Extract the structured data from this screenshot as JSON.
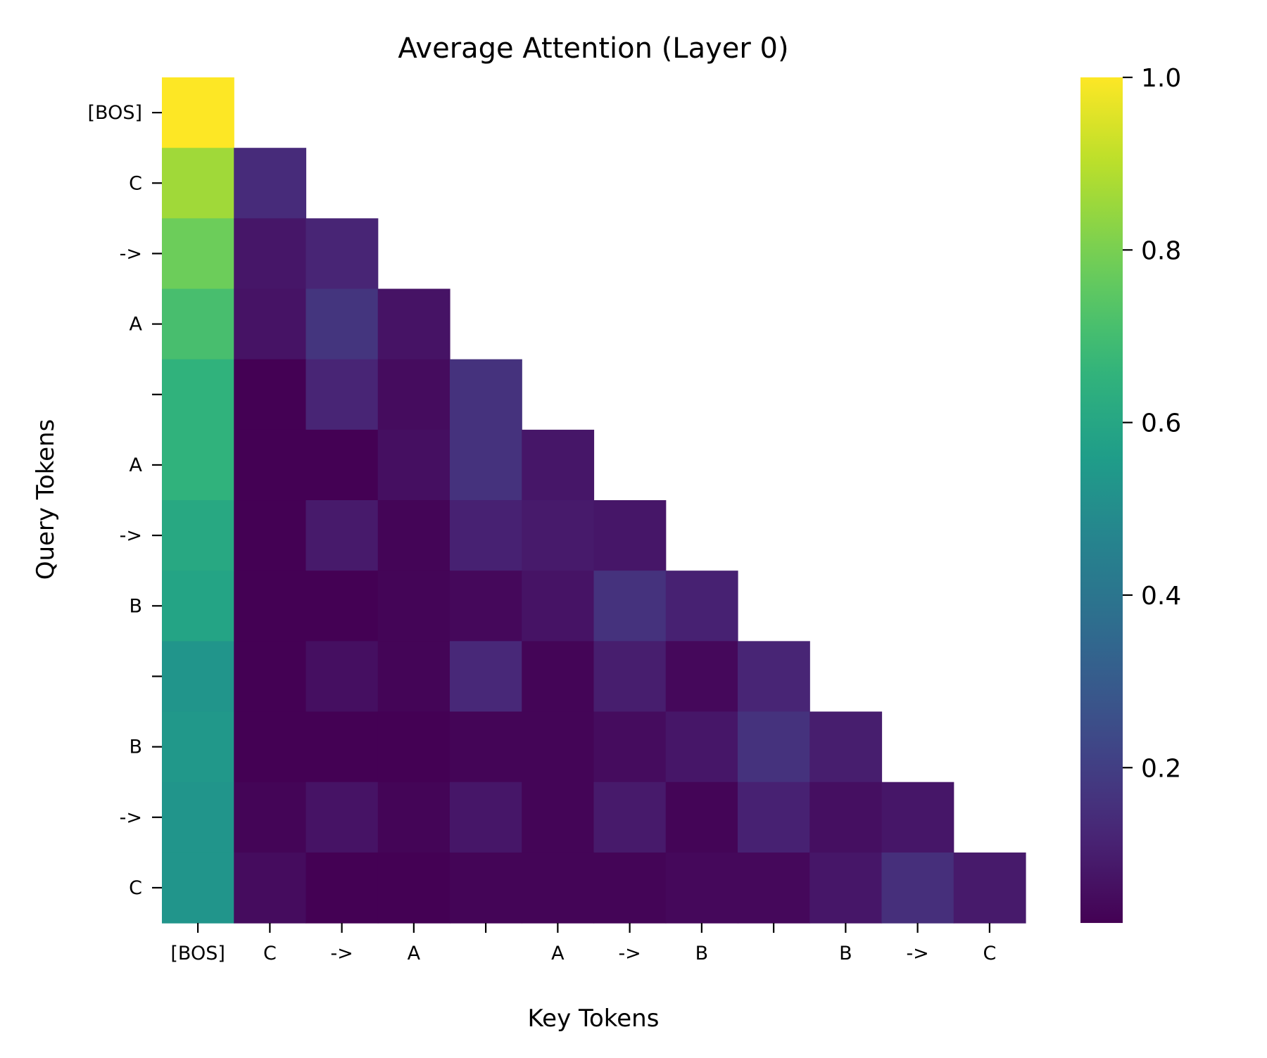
{
  "chart_data": {
    "type": "heatmap",
    "title": "Average Attention (Layer 0)",
    "xlabel": "Key Tokens",
    "ylabel": "Query Tokens",
    "x_tick_labels": [
      "[BOS]",
      "C",
      "->",
      "A",
      "",
      "A",
      "->",
      "B",
      "",
      "B",
      "->",
      "C"
    ],
    "y_tick_labels": [
      "[BOS]",
      "C",
      "->",
      "A",
      "",
      "A",
      "->",
      "B",
      "",
      "B",
      "->",
      "C"
    ],
    "mask": "upper-triangle",
    "colormap": "viridis",
    "vmin": 0.02,
    "vmax": 1.0,
    "colorbar": {
      "ticks": [
        0.2,
        0.4,
        0.6,
        0.8,
        1.0
      ],
      "tick_labels": [
        "0.2",
        "0.4",
        "0.6",
        "0.8",
        "1.0"
      ]
    },
    "values": [
      [
        1.0
      ],
      [
        0.86,
        0.14
      ],
      [
        0.78,
        0.08,
        0.12
      ],
      [
        0.71,
        0.07,
        0.17,
        0.07
      ],
      [
        0.65,
        0.02,
        0.12,
        0.05,
        0.16
      ],
      [
        0.65,
        0.02,
        0.02,
        0.06,
        0.16,
        0.08
      ],
      [
        0.61,
        0.02,
        0.09,
        0.03,
        0.11,
        0.09,
        0.08
      ],
      [
        0.59,
        0.02,
        0.02,
        0.03,
        0.04,
        0.07,
        0.16,
        0.11
      ],
      [
        0.53,
        0.02,
        0.06,
        0.03,
        0.13,
        0.03,
        0.1,
        0.04,
        0.12
      ],
      [
        0.54,
        0.02,
        0.02,
        0.02,
        0.03,
        0.03,
        0.05,
        0.08,
        0.16,
        0.1
      ],
      [
        0.53,
        0.03,
        0.07,
        0.03,
        0.08,
        0.03,
        0.09,
        0.03,
        0.11,
        0.06,
        0.08
      ],
      [
        0.53,
        0.05,
        0.02,
        0.02,
        0.03,
        0.03,
        0.03,
        0.04,
        0.04,
        0.08,
        0.15,
        0.09
      ]
    ]
  }
}
